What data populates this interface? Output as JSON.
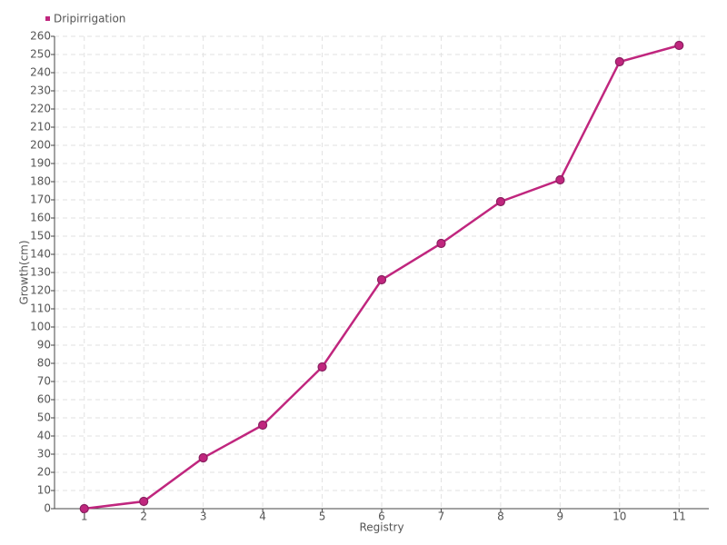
{
  "chart_data": {
    "type": "line",
    "x_label": "Registry",
    "y_label": "Growth(cm)",
    "categories": [
      "1",
      "2",
      "3",
      "4",
      "5",
      "6",
      "7",
      "8",
      "9",
      "10",
      "11"
    ],
    "series": [
      {
        "name": "Dripirrigation",
        "color": "#c0267e",
        "values": [
          0,
          4,
          28,
          46,
          78,
          126,
          146,
          169,
          181,
          246,
          255
        ]
      }
    ],
    "ylim": [
      0,
      260
    ],
    "yticks": [
      0,
      10,
      20,
      30,
      40,
      50,
      60,
      70,
      80,
      90,
      100,
      110,
      120,
      130,
      140,
      150,
      160,
      170,
      180,
      190,
      200,
      210,
      220,
      230,
      240,
      250,
      260
    ],
    "grid": true,
    "legend": "top-left"
  }
}
